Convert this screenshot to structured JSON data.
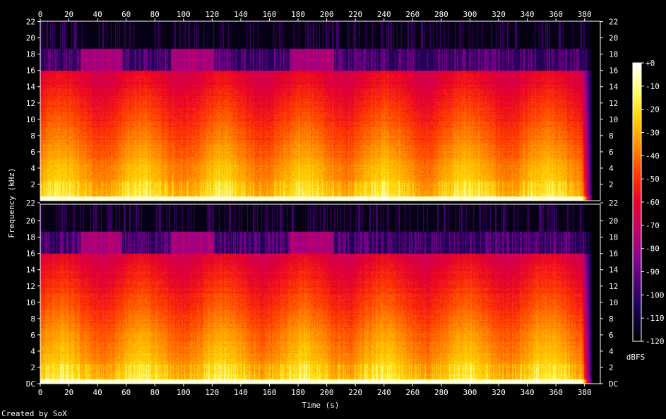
{
  "chart_data": {
    "type": "heatmap",
    "title": "",
    "xlabel": "Time (s)",
    "ylabel": "Frequency (kHz)",
    "colorbar_label": "dBFS",
    "footer": "Created by SoX",
    "xlim": [
      0,
      385
    ],
    "ylim": [
      0,
      22.05
    ],
    "x_ticks": [
      "0",
      "20",
      "40",
      "60",
      "80",
      "100",
      "120",
      "140",
      "160",
      "180",
      "200",
      "220",
      "240",
      "260",
      "280",
      "300",
      "320",
      "340",
      "360",
      "380"
    ],
    "x_tick_values": [
      0,
      20,
      40,
      60,
      80,
      100,
      120,
      140,
      160,
      180,
      200,
      220,
      240,
      260,
      280,
      300,
      320,
      340,
      360,
      380
    ],
    "y_ticks_top_channel": [
      "22",
      "20",
      "18",
      "16",
      "14",
      "12",
      "10",
      "8",
      "6",
      "4",
      "2"
    ],
    "y_tick_values_top_channel": [
      22,
      20,
      18,
      16,
      14,
      12,
      10,
      8,
      6,
      4,
      2
    ],
    "y_ticks_bottom_channel": [
      "20",
      "18",
      "16",
      "14",
      "12",
      "10",
      "8",
      "6",
      "4",
      "2",
      "DC"
    ],
    "y_tick_values_bottom_channel": [
      20,
      18,
      16,
      14,
      12,
      10,
      8,
      6,
      4,
      2,
      0
    ],
    "y_label_22_on_channel_boundary": "22",
    "colorbar_ticks": [
      "+0",
      "-10",
      "-20",
      "-30",
      "-40",
      "-50",
      "-60",
      "-70",
      "-80",
      "-90",
      "-100",
      "-110",
      "-120"
    ],
    "colorbar_tick_values": [
      0,
      -10,
      -20,
      -30,
      -40,
      -50,
      -60,
      -70,
      -80,
      -90,
      -100,
      -110,
      -120
    ],
    "colormap": [
      "#000000",
      "#16004a",
      "#4a0078",
      "#8a0090",
      "#c0006a",
      "#e8002a",
      "#ff3a00",
      "#ff8a00",
      "#ffd000",
      "#ffff70",
      "#ffffff"
    ],
    "channels": 2,
    "cutoff_khz": 16,
    "high_shelf_khz": 18.7,
    "wideband_segments_s": [
      [
        28,
        57
      ],
      [
        91,
        121
      ],
      [
        174,
        205
      ]
    ],
    "fade_out_start_s": 378
  }
}
